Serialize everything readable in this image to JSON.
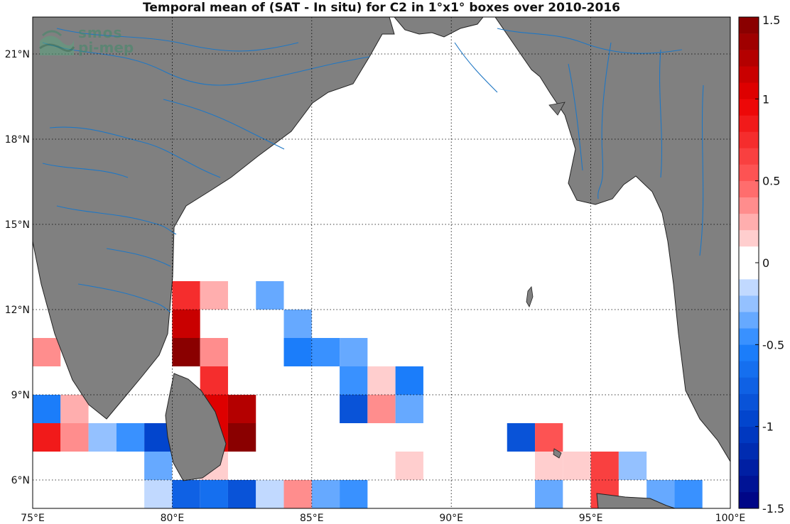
{
  "title": "Temporal mean of (SAT - In situ) for C2 in 1°x1° boxes over 2010-2016",
  "logo": {
    "line1": "smos",
    "line2": "pi-mep"
  },
  "map": {
    "lon_range": [
      75,
      100
    ],
    "lat_range": [
      5,
      22.3
    ],
    "gridlines": true,
    "lon_ticks": [
      {
        "v": 75,
        "label": "75°E"
      },
      {
        "v": 80,
        "label": "80°E"
      },
      {
        "v": 85,
        "label": "85°E"
      },
      {
        "v": 90,
        "label": "90°E"
      },
      {
        "v": 95,
        "label": "95°E"
      },
      {
        "v": 100,
        "label": "100°E"
      }
    ],
    "lat_ticks": [
      {
        "v": 6,
        "label": "6°N"
      },
      {
        "v": 9,
        "label": "9°N"
      },
      {
        "v": 12,
        "label": "12°N"
      },
      {
        "v": 15,
        "label": "15°N"
      },
      {
        "v": 18,
        "label": "18°N"
      },
      {
        "v": 21,
        "label": "21°N"
      }
    ],
    "land_color": "#808080",
    "river_color": "#1f77c4"
  },
  "colorbar": {
    "range": [
      -1.5,
      1.5
    ],
    "levels": 30,
    "ticks": [
      {
        "v": 1.5,
        "label": "1.5"
      },
      {
        "v": 1,
        "label": "1"
      },
      {
        "v": 0.5,
        "label": "0.5"
      },
      {
        "v": 0,
        "label": "0"
      },
      {
        "v": -0.5,
        "label": "-0.5"
      },
      {
        "v": -1,
        "label": "-1"
      },
      {
        "v": -1.5,
        "label": "-1.5"
      }
    ]
  },
  "chart_data": {
    "type": "heatmap",
    "title": "Temporal mean of (SAT - In situ) for C2 in 1°x1° boxes over 2010-2016",
    "cells": [
      {
        "lon": 80,
        "lat": 12,
        "v": 0.75
      },
      {
        "lon": 81,
        "lat": 12,
        "v": 0.2
      },
      {
        "lon": 83,
        "lat": 12,
        "v": -0.35
      },
      {
        "lon": 80,
        "lat": 11,
        "v": 1.1
      },
      {
        "lon": 84,
        "lat": 11,
        "v": -0.3
      },
      {
        "lon": 75,
        "lat": 10,
        "v": 0.3
      },
      {
        "lon": 80,
        "lat": 10,
        "v": 1.45
      },
      {
        "lon": 81,
        "lat": 10,
        "v": 0.35
      },
      {
        "lon": 84,
        "lat": 10,
        "v": -0.55
      },
      {
        "lon": 85,
        "lat": 10,
        "v": -0.45
      },
      {
        "lon": 86,
        "lat": 10,
        "v": -0.3
      },
      {
        "lon": 81,
        "lat": 9,
        "v": 0.7
      },
      {
        "lon": 86,
        "lat": 9,
        "v": -0.45
      },
      {
        "lon": 87,
        "lat": 9,
        "v": 0.15
      },
      {
        "lon": 88,
        "lat": 9,
        "v": -0.6
      },
      {
        "lon": 75,
        "lat": 8,
        "v": -0.6
      },
      {
        "lon": 76,
        "lat": 8,
        "v": 0.2
      },
      {
        "lon": 81,
        "lat": 8,
        "v": 1.0
      },
      {
        "lon": 82,
        "lat": 8,
        "v": 1.3
      },
      {
        "lon": 86,
        "lat": 8,
        "v": -0.85
      },
      {
        "lon": 87,
        "lat": 8,
        "v": 0.3
      },
      {
        "lon": 88,
        "lat": 8,
        "v": -0.3
      },
      {
        "lon": 75,
        "lat": 7,
        "v": 0.9
      },
      {
        "lon": 76,
        "lat": 7,
        "v": 0.35
      },
      {
        "lon": 77,
        "lat": 7,
        "v": -0.25
      },
      {
        "lon": 78,
        "lat": 7,
        "v": -0.5
      },
      {
        "lon": 79,
        "lat": 7,
        "v": -0.95
      },
      {
        "lon": 81,
        "lat": 7,
        "v": 1.0
      },
      {
        "lon": 82,
        "lat": 7,
        "v": 1.45
      },
      {
        "lon": 92,
        "lat": 7,
        "v": -0.8
      },
      {
        "lon": 93,
        "lat": 7,
        "v": 0.5
      },
      {
        "lon": 79,
        "lat": 6,
        "v": -0.4
      },
      {
        "lon": 81,
        "lat": 6,
        "v": 0.15
      },
      {
        "lon": 88,
        "lat": 6,
        "v": 0.15
      },
      {
        "lon": 93,
        "lat": 6,
        "v": 0.15
      },
      {
        "lon": 94,
        "lat": 6,
        "v": 0.15
      },
      {
        "lon": 95,
        "lat": 6,
        "v": 0.6
      },
      {
        "lon": 96,
        "lat": 6,
        "v": -0.25
      },
      {
        "lon": 79,
        "lat": 5,
        "v": -0.15
      },
      {
        "lon": 80,
        "lat": 5,
        "v": -0.75
      },
      {
        "lon": 81,
        "lat": 5,
        "v": -0.65
      },
      {
        "lon": 82,
        "lat": 5,
        "v": -0.8
      },
      {
        "lon": 83,
        "lat": 5,
        "v": -0.15
      },
      {
        "lon": 84,
        "lat": 5,
        "v": 0.3
      },
      {
        "lon": 85,
        "lat": 5,
        "v": -0.4
      },
      {
        "lon": 86,
        "lat": 5,
        "v": -0.5
      },
      {
        "lon": 93,
        "lat": 5,
        "v": -0.4
      },
      {
        "lon": 95,
        "lat": 5,
        "v": 0.6
      },
      {
        "lon": 97,
        "lat": 5,
        "v": -0.3
      },
      {
        "lon": 98,
        "lat": 5,
        "v": -0.5
      }
    ]
  }
}
